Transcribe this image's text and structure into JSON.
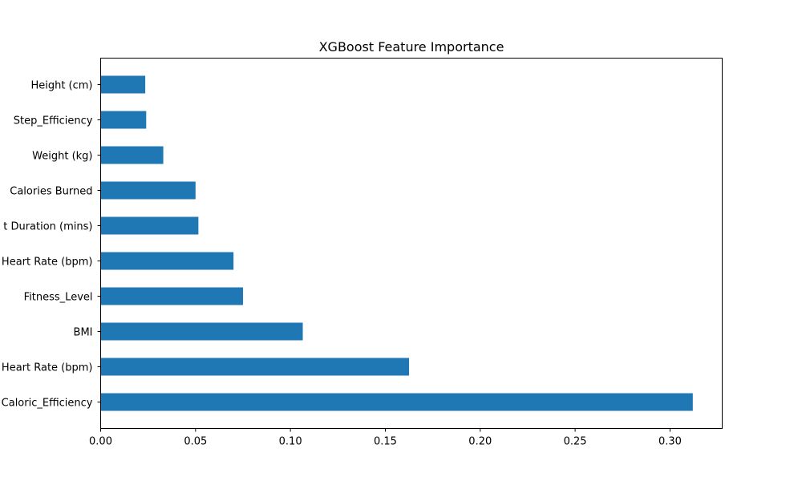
{
  "chart_data": {
    "type": "bar",
    "orientation": "horizontal",
    "title": "XGBoost Feature Importance",
    "xlabel": "",
    "ylabel": "",
    "categories": [
      "Height (cm)",
      "Step_Efficiency",
      "Weight (kg)",
      "Calories Burned",
      "t Duration (mins)",
      "Heart Rate (bpm)",
      "Fitness_Level",
      "BMI",
      "Heart Rate (bpm)",
      "Caloric_Efficiency"
    ],
    "values": [
      0.0235,
      0.024,
      0.033,
      0.05,
      0.0515,
      0.07,
      0.075,
      0.1065,
      0.1625,
      0.312
    ],
    "xlim": [
      0.0,
      0.3275
    ],
    "xticks": [
      0.0,
      0.05,
      0.1,
      0.15,
      0.2,
      0.25,
      0.3
    ],
    "xtick_labels": [
      "0.00",
      "0.05",
      "0.10",
      "0.15",
      "0.20",
      "0.25",
      "0.30"
    ],
    "bar_color": "#1f77b4",
    "grid": false,
    "legend": "none"
  }
}
